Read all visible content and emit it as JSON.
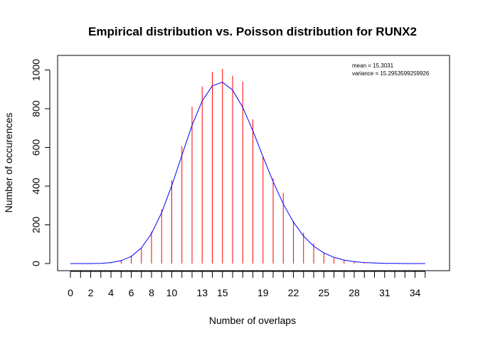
{
  "chart_data": {
    "type": "bar",
    "title": "Empirical distribution vs. Poisson distribution for RUNX2",
    "xlabel": "Number of overlaps",
    "ylabel": "Number of occurences",
    "x_tick_labels": [
      "0",
      "2",
      "4",
      "6",
      "8",
      "10",
      "13",
      "15",
      "19",
      "22",
      "25",
      "28",
      "31",
      "34"
    ],
    "y_ticks": [
      0,
      200,
      400,
      600,
      800,
      1000
    ],
    "xlim": [
      -0.5,
      36
    ],
    "ylim": [
      0,
      1030
    ],
    "annotations": {
      "mean": "mean =  15.3031",
      "variance": "variance =  15.2953599259926"
    },
    "colors": {
      "empirical": "#ff0000",
      "poisson": "#0000ff",
      "axis": "#000000"
    },
    "series": [
      {
        "type": "bar",
        "x": [
          0,
          1,
          2,
          3,
          4,
          5,
          6,
          7,
          8,
          9,
          10,
          11,
          12,
          13,
          14,
          15,
          16,
          17,
          18,
          19,
          20,
          21,
          22,
          23,
          24,
          25,
          26,
          27,
          28,
          29,
          30,
          31,
          32,
          33,
          34,
          35
        ],
        "values": [
          0,
          0,
          0,
          0,
          2,
          18,
          40,
          80,
          165,
          280,
          430,
          605,
          810,
          915,
          990,
          1005,
          970,
          940,
          745,
          550,
          440,
          365,
          220,
          160,
          105,
          55,
          30,
          17,
          10,
          6,
          3,
          2,
          1,
          1,
          0,
          0
        ]
      },
      {
        "type": "line",
        "x": [
          0,
          1,
          2,
          3,
          4,
          5,
          6,
          7,
          8,
          9,
          10,
          11,
          12,
          13,
          14,
          15,
          16,
          17,
          18,
          19,
          20,
          21,
          22,
          23,
          24,
          25,
          26,
          27,
          28,
          29,
          30,
          31,
          32,
          33,
          34,
          35
        ],
        "values": [
          0,
          0,
          0,
          1,
          5,
          15,
          37,
          81,
          155,
          263,
          403,
          560,
          714,
          840,
          918,
          937,
          896,
          807,
          686,
          552,
          423,
          308,
          214,
          142,
          90,
          55,
          32,
          18,
          10,
          5,
          3,
          1,
          1,
          0,
          0,
          0
        ]
      }
    ]
  }
}
